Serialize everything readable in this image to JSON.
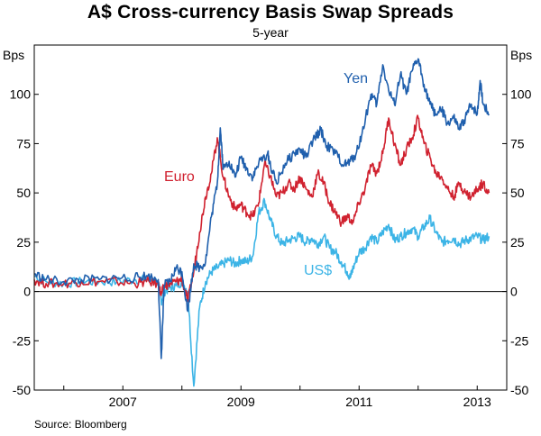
{
  "title": "A$ Cross-currency Basis Swap Spreads",
  "subtitle": "5-year",
  "source": "Source: Bloomberg",
  "colors": {
    "yen": "#1f5fad",
    "euro": "#d0212f",
    "usd": "#3cb4e6"
  },
  "chart_data": {
    "type": "line",
    "title": "A$ Cross-currency Basis Swap Spreads",
    "subtitle": "5-year",
    "ylabel_left": "Bps",
    "ylabel_right": "Bps",
    "ylim": [
      -50,
      125
    ],
    "xlim": [
      2005.5,
      2013.5
    ],
    "yticks": [
      -50,
      -25,
      0,
      25,
      50,
      75,
      100
    ],
    "ytick_labels": [
      "-50",
      "-25",
      "0",
      "25",
      "50",
      "75",
      "100"
    ],
    "xticks": [
      2007,
      2009,
      2011,
      2013
    ],
    "xtick_labels": [
      "2007",
      "2009",
      "2011",
      "2013"
    ],
    "series": [
      {
        "name": "Yen",
        "label": "Yen",
        "points": [
          [
            2005.5,
            9
          ],
          [
            2005.7,
            6
          ],
          [
            2006.0,
            5
          ],
          [
            2006.3,
            6
          ],
          [
            2006.6,
            6
          ],
          [
            2006.9,
            7
          ],
          [
            2007.2,
            7
          ],
          [
            2007.4,
            8
          ],
          [
            2007.6,
            6
          ],
          [
            2007.65,
            -34
          ],
          [
            2007.7,
            3
          ],
          [
            2007.8,
            5
          ],
          [
            2007.9,
            12
          ],
          [
            2008.0,
            10
          ],
          [
            2008.1,
            -10
          ],
          [
            2008.2,
            14
          ],
          [
            2008.3,
            12
          ],
          [
            2008.4,
            15
          ],
          [
            2008.5,
            38
          ],
          [
            2008.6,
            55
          ],
          [
            2008.65,
            83
          ],
          [
            2008.7,
            62
          ],
          [
            2008.8,
            66
          ],
          [
            2008.9,
            58
          ],
          [
            2009.0,
            68
          ],
          [
            2009.1,
            62
          ],
          [
            2009.2,
            58
          ],
          [
            2009.3,
            65
          ],
          [
            2009.45,
            70
          ],
          [
            2009.5,
            64
          ],
          [
            2009.6,
            55
          ],
          [
            2009.75,
            65
          ],
          [
            2009.9,
            70
          ],
          [
            2010.0,
            72
          ],
          [
            2010.1,
            68
          ],
          [
            2010.25,
            78
          ],
          [
            2010.35,
            82
          ],
          [
            2010.45,
            74
          ],
          [
            2010.6,
            70
          ],
          [
            2010.75,
            64
          ],
          [
            2010.85,
            66
          ],
          [
            2010.95,
            70
          ],
          [
            2011.05,
            80
          ],
          [
            2011.2,
            100
          ],
          [
            2011.3,
            95
          ],
          [
            2011.4,
            115
          ],
          [
            2011.5,
            102
          ],
          [
            2011.6,
            95
          ],
          [
            2011.7,
            110
          ],
          [
            2011.8,
            100
          ],
          [
            2011.9,
            112
          ],
          [
            2012.0,
            118
          ],
          [
            2012.1,
            105
          ],
          [
            2012.2,
            95
          ],
          [
            2012.3,
            90
          ],
          [
            2012.4,
            92
          ],
          [
            2012.5,
            85
          ],
          [
            2012.6,
            88
          ],
          [
            2012.7,
            82
          ],
          [
            2012.8,
            88
          ],
          [
            2012.9,
            95
          ],
          [
            2013.0,
            90
          ],
          [
            2013.05,
            107
          ],
          [
            2013.1,
            95
          ],
          [
            2013.2,
            90
          ]
        ]
      },
      {
        "name": "Euro",
        "label": "Euro",
        "points": [
          [
            2005.5,
            6
          ],
          [
            2005.7,
            4
          ],
          [
            2006.0,
            4
          ],
          [
            2006.3,
            5
          ],
          [
            2006.6,
            5
          ],
          [
            2006.9,
            5
          ],
          [
            2007.2,
            4
          ],
          [
            2007.4,
            5
          ],
          [
            2007.6,
            4
          ],
          [
            2007.65,
            -2
          ],
          [
            2007.7,
            3
          ],
          [
            2007.8,
            4
          ],
          [
            2007.9,
            5
          ],
          [
            2008.0,
            6
          ],
          [
            2008.1,
            -5
          ],
          [
            2008.2,
            10
          ],
          [
            2008.3,
            30
          ],
          [
            2008.4,
            48
          ],
          [
            2008.5,
            60
          ],
          [
            2008.6,
            78
          ],
          [
            2008.7,
            58
          ],
          [
            2008.8,
            48
          ],
          [
            2008.9,
            42
          ],
          [
            2009.0,
            44
          ],
          [
            2009.1,
            40
          ],
          [
            2009.2,
            38
          ],
          [
            2009.3,
            45
          ],
          [
            2009.4,
            65
          ],
          [
            2009.5,
            58
          ],
          [
            2009.6,
            48
          ],
          [
            2009.7,
            50
          ],
          [
            2009.8,
            55
          ],
          [
            2009.9,
            52
          ],
          [
            2010.0,
            58
          ],
          [
            2010.1,
            52
          ],
          [
            2010.2,
            48
          ],
          [
            2010.3,
            60
          ],
          [
            2010.4,
            55
          ],
          [
            2010.5,
            45
          ],
          [
            2010.6,
            40
          ],
          [
            2010.7,
            35
          ],
          [
            2010.8,
            38
          ],
          [
            2010.9,
            35
          ],
          [
            2011.0,
            45
          ],
          [
            2011.1,
            52
          ],
          [
            2011.2,
            64
          ],
          [
            2011.3,
            60
          ],
          [
            2011.4,
            70
          ],
          [
            2011.5,
            88
          ],
          [
            2011.6,
            75
          ],
          [
            2011.7,
            64
          ],
          [
            2011.8,
            72
          ],
          [
            2011.9,
            78
          ],
          [
            2012.0,
            88
          ],
          [
            2012.1,
            75
          ],
          [
            2012.2,
            68
          ],
          [
            2012.3,
            60
          ],
          [
            2012.4,
            58
          ],
          [
            2012.5,
            52
          ],
          [
            2012.6,
            48
          ],
          [
            2012.7,
            55
          ],
          [
            2012.8,
            50
          ],
          [
            2012.9,
            48
          ],
          [
            2013.0,
            52
          ],
          [
            2013.1,
            55
          ],
          [
            2013.2,
            50
          ]
        ]
      },
      {
        "name": "US$",
        "label": "US$",
        "points": [
          [
            2005.5,
            8
          ],
          [
            2005.7,
            5
          ],
          [
            2006.0,
            4
          ],
          [
            2006.3,
            5
          ],
          [
            2006.6,
            5
          ],
          [
            2006.9,
            5
          ],
          [
            2007.2,
            6
          ],
          [
            2007.4,
            6
          ],
          [
            2007.6,
            5
          ],
          [
            2007.65,
            -5
          ],
          [
            2007.7,
            0
          ],
          [
            2007.8,
            2
          ],
          [
            2007.9,
            3
          ],
          [
            2008.0,
            5
          ],
          [
            2008.1,
            0
          ],
          [
            2008.2,
            -48
          ],
          [
            2008.3,
            -8
          ],
          [
            2008.4,
            5
          ],
          [
            2008.5,
            10
          ],
          [
            2008.6,
            12
          ],
          [
            2008.7,
            14
          ],
          [
            2008.8,
            16
          ],
          [
            2008.9,
            14
          ],
          [
            2009.0,
            16
          ],
          [
            2009.1,
            15
          ],
          [
            2009.2,
            18
          ],
          [
            2009.3,
            40
          ],
          [
            2009.4,
            46
          ],
          [
            2009.5,
            36
          ],
          [
            2009.6,
            28
          ],
          [
            2009.7,
            24
          ],
          [
            2009.8,
            26
          ],
          [
            2009.9,
            27
          ],
          [
            2010.0,
            28
          ],
          [
            2010.1,
            25
          ],
          [
            2010.2,
            27
          ],
          [
            2010.3,
            24
          ],
          [
            2010.4,
            28
          ],
          [
            2010.5,
            22
          ],
          [
            2010.6,
            20
          ],
          [
            2010.7,
            15
          ],
          [
            2010.8,
            10
          ],
          [
            2010.85,
            7
          ],
          [
            2010.9,
            12
          ],
          [
            2011.0,
            20
          ],
          [
            2011.1,
            22
          ],
          [
            2011.2,
            28
          ],
          [
            2011.3,
            25
          ],
          [
            2011.4,
            30
          ],
          [
            2011.5,
            34
          ],
          [
            2011.6,
            26
          ],
          [
            2011.7,
            28
          ],
          [
            2011.8,
            30
          ],
          [
            2011.9,
            32
          ],
          [
            2012.0,
            28
          ],
          [
            2012.1,
            33
          ],
          [
            2012.2,
            37
          ],
          [
            2012.3,
            30
          ],
          [
            2012.4,
            25
          ],
          [
            2012.5,
            26
          ],
          [
            2012.6,
            27
          ],
          [
            2012.7,
            24
          ],
          [
            2012.8,
            26
          ],
          [
            2012.9,
            27
          ],
          [
            2013.0,
            28
          ],
          [
            2013.1,
            26
          ],
          [
            2013.2,
            28
          ]
        ]
      }
    ],
    "series_labels": [
      {
        "text": "Yen",
        "series": "Yen"
      },
      {
        "text": "Euro",
        "series": "Euro"
      },
      {
        "text": "US$",
        "series": "US$"
      }
    ]
  }
}
